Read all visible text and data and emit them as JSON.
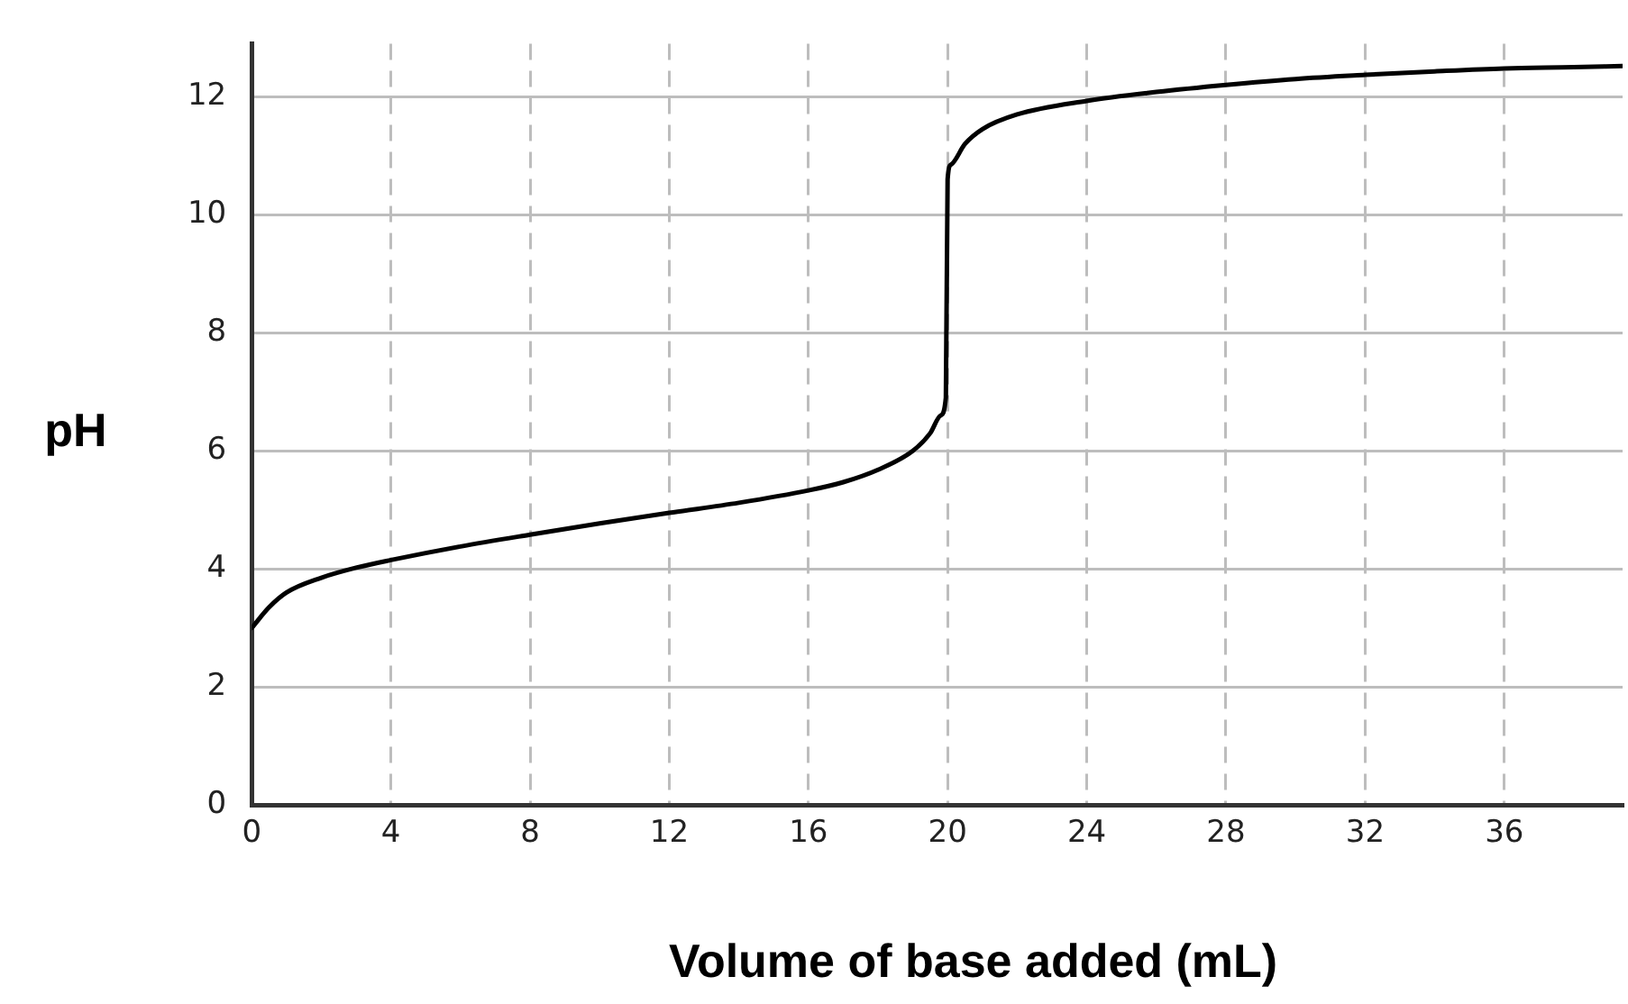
{
  "chart_data": {
    "type": "line",
    "xlabel": "Volume of base added (mL)",
    "ylabel": "pH",
    "xlim": [
      0,
      39.4
    ],
    "ylim": [
      0,
      12.9
    ],
    "xticks": [
      0,
      4,
      8,
      12,
      16,
      20,
      24,
      28,
      32,
      36
    ],
    "yticks": [
      0,
      2,
      4,
      6,
      8,
      10,
      12
    ],
    "grid": true,
    "legend": false,
    "marker": "none",
    "line_style": "solid",
    "series": [
      {
        "color": "#000000",
        "x": [
          0,
          0.5,
          1,
          2,
          3,
          4,
          6,
          8,
          10,
          12,
          14,
          16,
          17,
          18,
          19,
          19.5,
          19.8,
          19.95,
          20,
          20.1,
          20.5,
          21,
          22,
          24,
          26,
          28,
          30,
          32,
          34,
          36,
          38,
          39.4
        ],
        "values": [
          3.0,
          3.35,
          3.6,
          3.85,
          4.02,
          4.15,
          4.38,
          4.58,
          4.77,
          4.95,
          5.12,
          5.33,
          5.47,
          5.68,
          6.0,
          6.3,
          6.6,
          6.9,
          10.6,
          10.85,
          11.2,
          11.45,
          11.7,
          11.93,
          12.08,
          12.2,
          12.3,
          12.37,
          12.43,
          12.48,
          12.5,
          12.52
        ]
      }
    ]
  }
}
